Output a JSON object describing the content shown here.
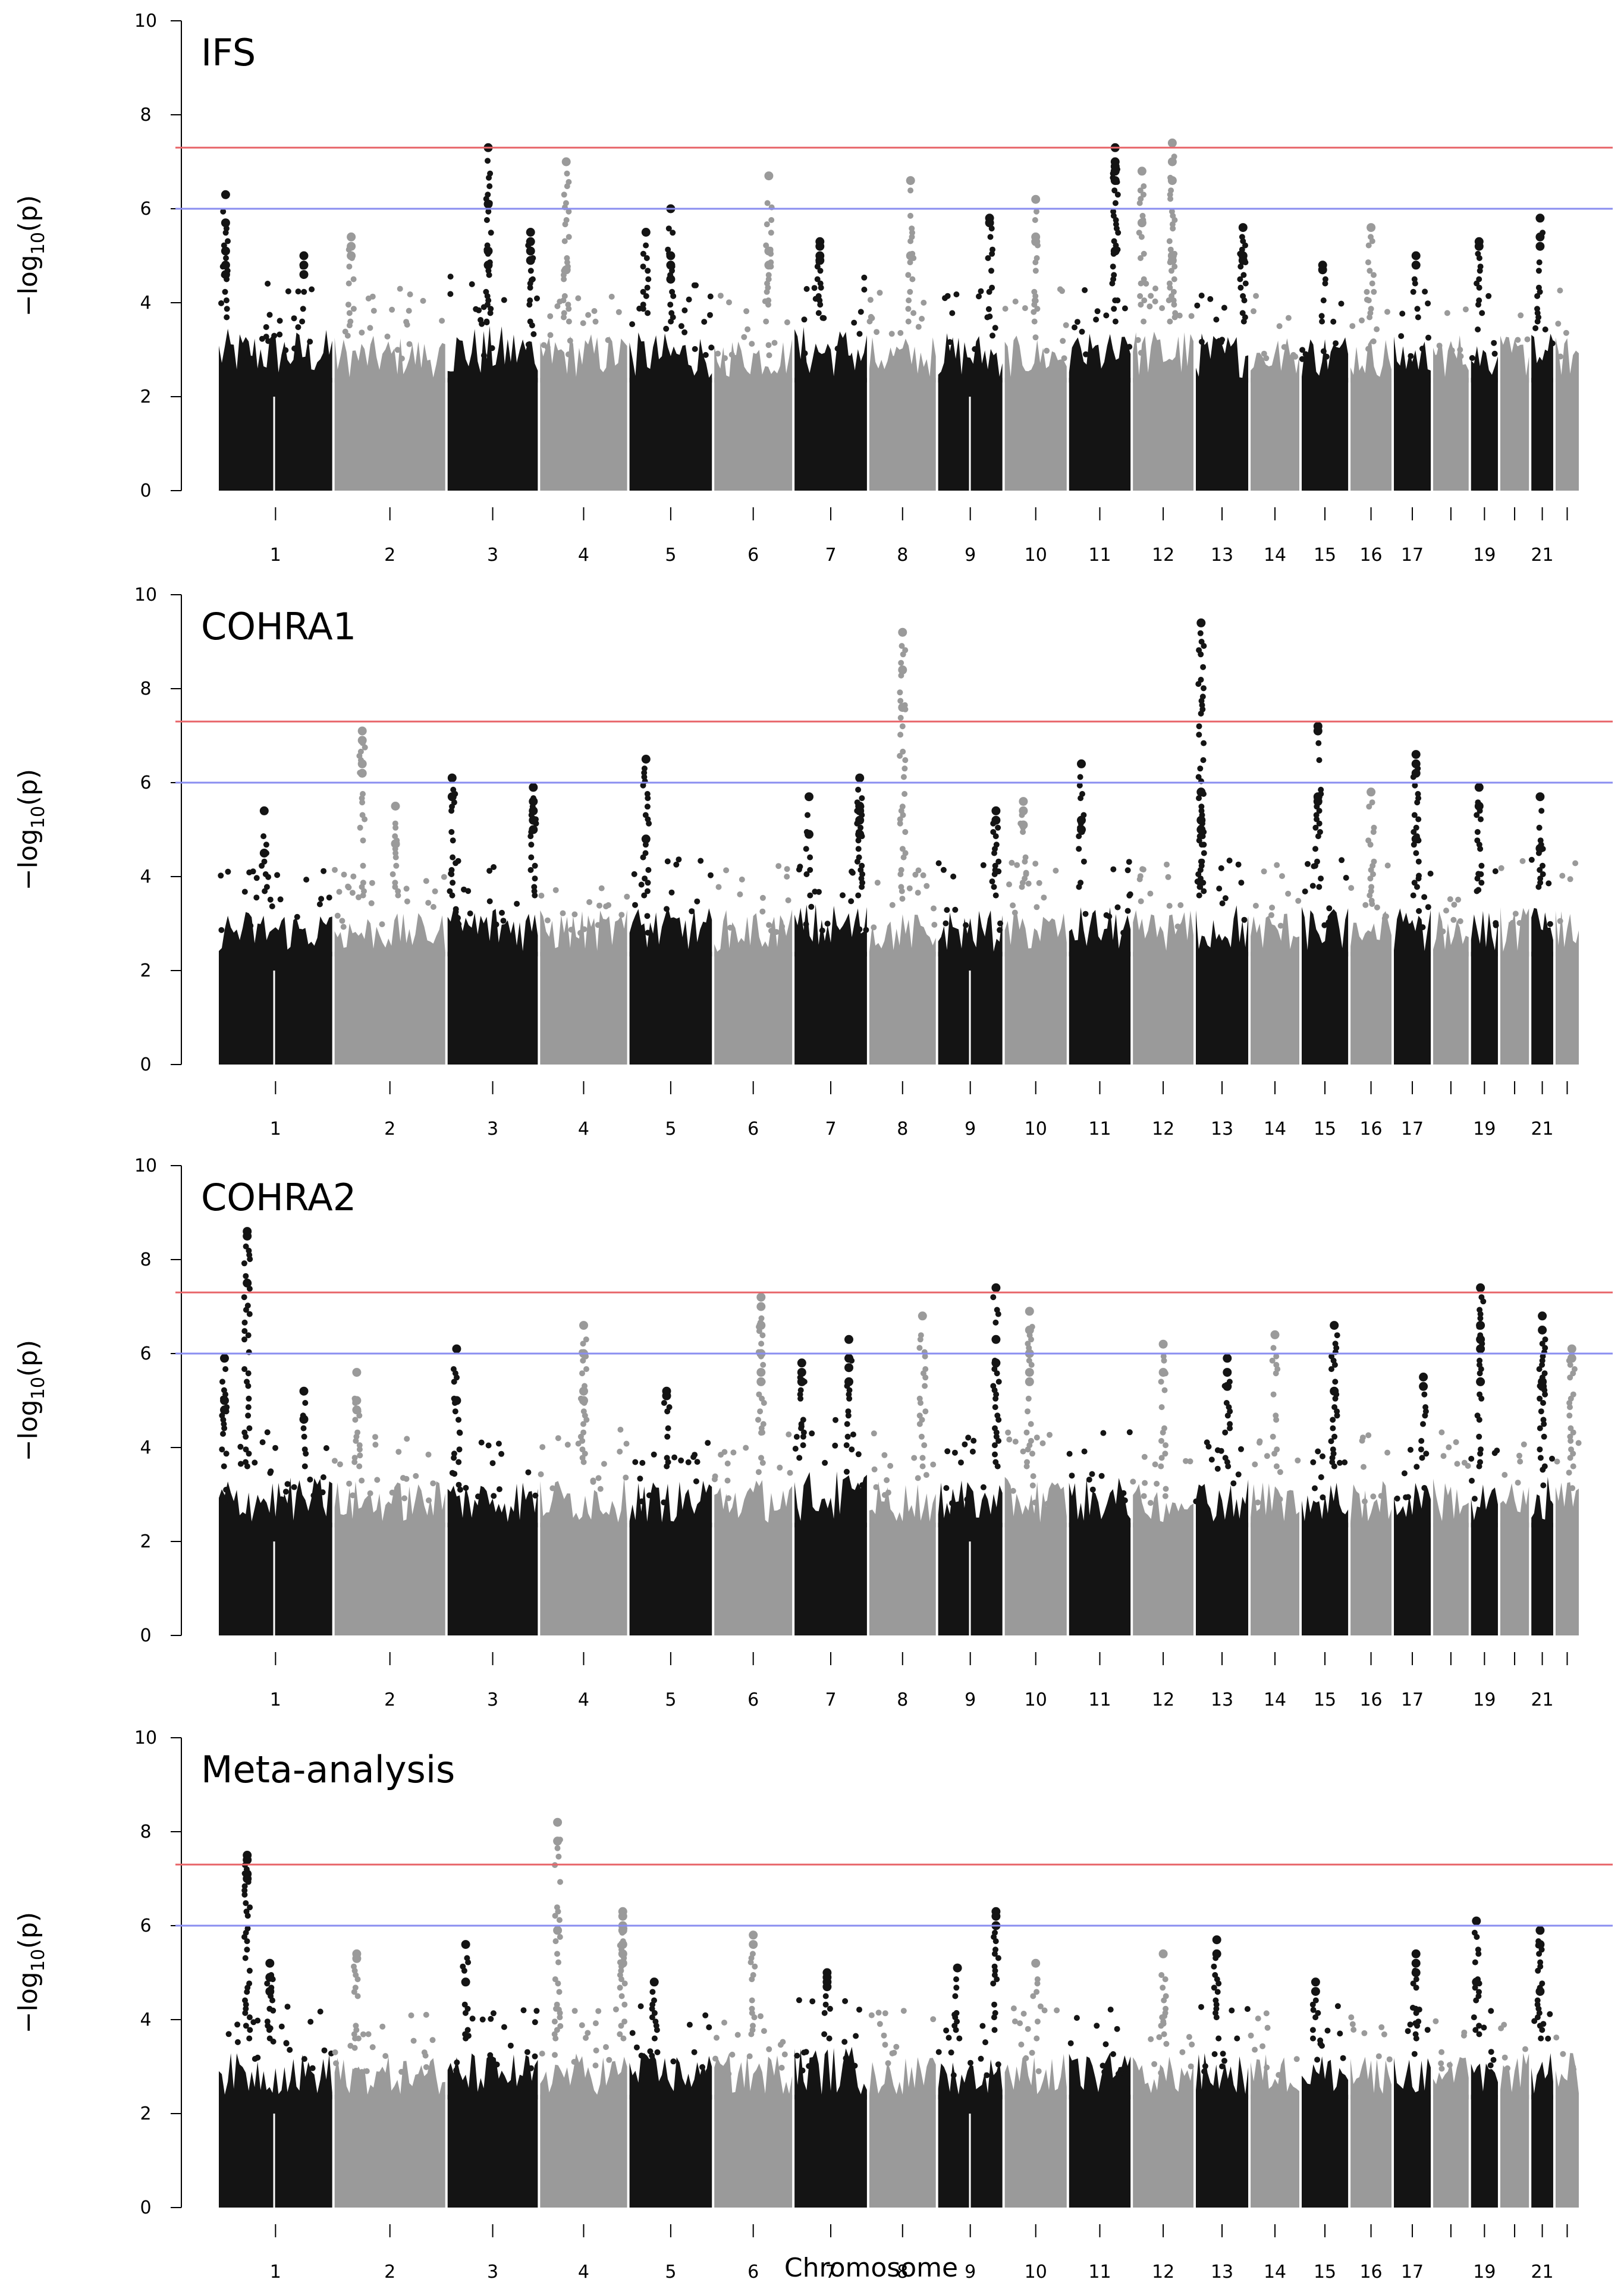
{
  "figure": {
    "xlabel": "Chromosome",
    "ylabel_main": "−log",
    "ylabel_sub": "10",
    "ylabel_tail": "(p)"
  },
  "chart_data": [
    {
      "type": "scatter",
      "subtype": "manhattan",
      "title": "IFS",
      "ylim": [
        0,
        10
      ],
      "yticks": [
        0,
        2,
        4,
        6,
        8,
        10
      ],
      "threshold_lines": [
        {
          "value": 7.3,
          "color": "#e8666a"
        },
        {
          "value": 6.0,
          "color": "#8a8ef0"
        }
      ],
      "colors": [
        "#141414",
        "#9a9a9a"
      ],
      "x_tick_labels": [
        "1",
        "2",
        "3",
        "4",
        "5",
        "6",
        "7",
        "8",
        "9",
        "10",
        "11",
        "12",
        "13",
        "14",
        "15",
        "16",
        "17",
        "19",
        "21"
      ],
      "background_max": [
        3.8,
        3.6,
        3.9,
        3.7,
        3.7,
        3.6,
        3.9,
        3.6,
        3.7,
        3.6,
        3.7,
        3.8,
        3.7,
        3.6,
        3.7,
        3.6,
        3.6,
        3.7,
        3.6,
        3.6,
        3.7,
        3.6
      ],
      "peaks": [
        {
          "chr": 1,
          "pos": 0.06,
          "values": [
            6.3,
            5.7,
            5.1,
            4.8,
            4.6
          ]
        },
        {
          "chr": 1,
          "pos": 0.75,
          "values": [
            5.0,
            4.8,
            4.6
          ]
        },
        {
          "chr": 2,
          "pos": 0.15,
          "values": [
            5.4,
            5.2,
            5.0
          ]
        },
        {
          "chr": 3,
          "pos": 0.45,
          "values": [
            7.3,
            6.1,
            5.1,
            4.8
          ]
        },
        {
          "chr": 3,
          "pos": 0.92,
          "values": [
            5.5,
            5.3,
            5.1,
            4.9
          ]
        },
        {
          "chr": 4,
          "pos": 0.3,
          "values": [
            7.0,
            4.7
          ]
        },
        {
          "chr": 5,
          "pos": 0.5,
          "values": [
            6.0,
            5.0,
            4.8,
            4.5
          ]
        },
        {
          "chr": 5,
          "pos": 0.2,
          "values": [
            5.5
          ]
        },
        {
          "chr": 6,
          "pos": 0.7,
          "values": [
            6.7,
            5.1,
            4.8
          ]
        },
        {
          "chr": 7,
          "pos": 0.35,
          "values": [
            5.3,
            5.2,
            5.0,
            4.9
          ]
        },
        {
          "chr": 8,
          "pos": 0.62,
          "values": [
            6.6,
            5.0
          ]
        },
        {
          "chr": 9,
          "pos": 0.8,
          "values": [
            5.8,
            5.7
          ]
        },
        {
          "chr": 10,
          "pos": 0.5,
          "values": [
            6.2,
            5.4,
            5.3
          ]
        },
        {
          "chr": 11,
          "pos": 0.75,
          "values": [
            7.3,
            7.0,
            6.9,
            6.8,
            6.6,
            5.1
          ]
        },
        {
          "chr": 12,
          "pos": 0.65,
          "values": [
            7.4,
            7.0,
            6.6,
            5.0,
            4.9
          ]
        },
        {
          "chr": 12,
          "pos": 0.15,
          "values": [
            6.8,
            5.7
          ]
        },
        {
          "chr": 13,
          "pos": 0.9,
          "values": [
            5.6,
            5.0,
            4.9
          ]
        },
        {
          "chr": 15,
          "pos": 0.45,
          "values": [
            4.8,
            4.7
          ]
        },
        {
          "chr": 16,
          "pos": 0.5,
          "values": [
            5.6
          ]
        },
        {
          "chr": 17,
          "pos": 0.6,
          "values": [
            5.0,
            4.8
          ]
        },
        {
          "chr": 19,
          "pos": 0.3,
          "values": [
            5.3,
            5.2
          ]
        },
        {
          "chr": 21,
          "pos": 0.4,
          "values": [
            5.8,
            5.4,
            5.2
          ]
        }
      ]
    },
    {
      "type": "scatter",
      "subtype": "manhattan",
      "title": "COHRA1",
      "ylim": [
        0,
        10
      ],
      "yticks": [
        0,
        2,
        4,
        6,
        8,
        10
      ],
      "threshold_lines": [
        {
          "value": 7.3,
          "color": "#e8666a"
        },
        {
          "value": 6.0,
          "color": "#8a8ef0"
        }
      ],
      "colors": [
        "#141414",
        "#9a9a9a"
      ],
      "x_tick_labels": [
        "1",
        "2",
        "3",
        "4",
        "5",
        "6",
        "7",
        "8",
        "9",
        "10",
        "11",
        "12",
        "13",
        "14",
        "15",
        "16",
        "17",
        "19",
        "21"
      ],
      "background_max": [
        3.6,
        3.5,
        3.8,
        3.6,
        3.7,
        3.6,
        3.8,
        3.5,
        3.6,
        3.6,
        3.7,
        3.6,
        3.8,
        3.6,
        3.7,
        3.6,
        3.7,
        3.6,
        3.6,
        3.7,
        3.7,
        3.6
      ],
      "peaks": [
        {
          "chr": 1,
          "pos": 0.4,
          "values": [
            5.4,
            4.5
          ]
        },
        {
          "chr": 2,
          "pos": 0.25,
          "values": [
            7.1,
            6.9,
            6.4,
            6.2
          ]
        },
        {
          "chr": 2,
          "pos": 0.55,
          "values": [
            5.5,
            4.7
          ]
        },
        {
          "chr": 3,
          "pos": 0.05,
          "values": [
            6.1,
            5.7
          ]
        },
        {
          "chr": 3,
          "pos": 0.95,
          "values": [
            5.9,
            5.6,
            5.4,
            5.2,
            5.0
          ]
        },
        {
          "chr": 5,
          "pos": 0.2,
          "values": [
            6.5,
            4.8
          ]
        },
        {
          "chr": 7,
          "pos": 0.2,
          "values": [
            5.7,
            4.9
          ]
        },
        {
          "chr": 7,
          "pos": 0.9,
          "values": [
            6.1,
            5.5,
            5.4,
            5.2,
            4.9
          ]
        },
        {
          "chr": 8,
          "pos": 0.5,
          "values": [
            9.2,
            8.4,
            7.6
          ]
        },
        {
          "chr": 9,
          "pos": 0.9,
          "values": [
            5.4,
            5.2
          ]
        },
        {
          "chr": 10,
          "pos": 0.3,
          "values": [
            5.6,
            5.4,
            5.1
          ]
        },
        {
          "chr": 11,
          "pos": 0.2,
          "values": [
            6.4,
            5.2,
            5.0
          ]
        },
        {
          "chr": 13,
          "pos": 0.1,
          "values": [
            9.4
          ]
        },
        {
          "chr": 13,
          "pos": 0.1,
          "values": [
            5.8,
            5.2,
            5.0
          ]
        },
        {
          "chr": 15,
          "pos": 0.35,
          "values": [
            7.2,
            7.1,
            5.7,
            5.6
          ]
        },
        {
          "chr": 16,
          "pos": 0.5,
          "values": [
            5.8
          ]
        },
        {
          "chr": 17,
          "pos": 0.6,
          "values": [
            6.6,
            6.4,
            6.2,
            4.8
          ]
        },
        {
          "chr": 19,
          "pos": 0.3,
          "values": [
            5.9,
            5.5
          ]
        },
        {
          "chr": 21,
          "pos": 0.4,
          "values": [
            5.7,
            4.6
          ]
        }
      ]
    },
    {
      "type": "scatter",
      "subtype": "manhattan",
      "title": "COHRA2",
      "ylim": [
        0,
        10
      ],
      "yticks": [
        0,
        2,
        4,
        6,
        8,
        10
      ],
      "threshold_lines": [
        {
          "value": 7.3,
          "color": "#e8666a"
        },
        {
          "value": 6.0,
          "color": "#8a8ef0"
        }
      ],
      "colors": [
        "#141414",
        "#9a9a9a"
      ],
      "x_tick_labels": [
        "1",
        "2",
        "3",
        "4",
        "5",
        "6",
        "7",
        "8",
        "9",
        "10",
        "11",
        "12",
        "13",
        "14",
        "15",
        "16",
        "17",
        "19",
        "21"
      ],
      "background_max": [
        3.7,
        3.6,
        3.7,
        3.7,
        3.6,
        3.7,
        3.9,
        3.6,
        3.6,
        3.7,
        3.7,
        3.5,
        3.7,
        3.6,
        3.7,
        3.6,
        3.6,
        3.7,
        3.6,
        3.6,
        3.7,
        3.6
      ],
      "peaks": [
        {
          "chr": 1,
          "pos": 0.25,
          "values": [
            8.6,
            8.5,
            7.5
          ]
        },
        {
          "chr": 1,
          "pos": 0.05,
          "values": [
            5.9,
            5.0,
            4.8
          ]
        },
        {
          "chr": 1,
          "pos": 0.75,
          "values": [
            5.2,
            4.6
          ]
        },
        {
          "chr": 2,
          "pos": 0.2,
          "values": [
            5.6,
            5.0,
            4.8
          ]
        },
        {
          "chr": 3,
          "pos": 0.1,
          "values": [
            6.1,
            5.0
          ]
        },
        {
          "chr": 4,
          "pos": 0.5,
          "values": [
            6.6,
            6.0,
            5.2,
            5.0
          ]
        },
        {
          "chr": 5,
          "pos": 0.45,
          "values": [
            5.2,
            5.1
          ]
        },
        {
          "chr": 6,
          "pos": 0.6,
          "values": [
            7.2,
            7.0,
            6.6,
            6.0,
            5.6,
            5.4
          ]
        },
        {
          "chr": 7,
          "pos": 0.1,
          "values": [
            5.8,
            5.6,
            5.4
          ]
        },
        {
          "chr": 7,
          "pos": 0.75,
          "values": [
            6.3,
            5.9,
            5.7,
            5.4
          ]
        },
        {
          "chr": 8,
          "pos": 0.8,
          "values": [
            6.8
          ]
        },
        {
          "chr": 9,
          "pos": 0.9,
          "values": [
            7.4,
            6.3,
            5.8
          ]
        },
        {
          "chr": 10,
          "pos": 0.4,
          "values": [
            6.9,
            6.5,
            6.0,
            5.6,
            5.4
          ]
        },
        {
          "chr": 12,
          "pos": 0.5,
          "values": [
            6.2,
            5.6
          ]
        },
        {
          "chr": 13,
          "pos": 0.6,
          "values": [
            5.9,
            5.6,
            5.3
          ]
        },
        {
          "chr": 14,
          "pos": 0.5,
          "values": [
            6.4
          ]
        },
        {
          "chr": 15,
          "pos": 0.7,
          "values": [
            6.6,
            5.2
          ]
        },
        {
          "chr": 17,
          "pos": 0.8,
          "values": [
            5.5,
            5.3
          ]
        },
        {
          "chr": 19,
          "pos": 0.35,
          "values": [
            7.4,
            6.6,
            6.3,
            6.1,
            5.4
          ]
        },
        {
          "chr": 21,
          "pos": 0.5,
          "values": [
            6.8,
            6.5,
            5.4,
            5.3
          ]
        },
        {
          "chr": 22,
          "pos": 0.7,
          "values": [
            6.1,
            5.9
          ]
        }
      ]
    },
    {
      "type": "scatter",
      "subtype": "manhattan",
      "title": "Meta-analysis",
      "ylim": [
        0,
        10
      ],
      "yticks": [
        0,
        2,
        4,
        6,
        8,
        10
      ],
      "threshold_lines": [
        {
          "value": 7.3,
          "color": "#e8666a"
        },
        {
          "value": 6.0,
          "color": "#8a8ef0"
        }
      ],
      "colors": [
        "#141414",
        "#9a9a9a"
      ],
      "x_tick_labels": [
        "1",
        "2",
        "3",
        "4",
        "5",
        "6",
        "7",
        "8",
        "9",
        "10",
        "11",
        "12",
        "13",
        "14",
        "15",
        "16",
        "17",
        "19",
        "21"
      ],
      "background_max": [
        3.6,
        3.5,
        3.6,
        3.6,
        3.6,
        3.6,
        3.8,
        3.5,
        3.5,
        3.6,
        3.6,
        3.5,
        3.6,
        3.6,
        3.6,
        3.5,
        3.6,
        3.6,
        3.5,
        3.6,
        3.7,
        3.6
      ],
      "peaks": [
        {
          "chr": 1,
          "pos": 0.25,
          "values": [
            7.5,
            7.4,
            7.1,
            7.0
          ]
        },
        {
          "chr": 1,
          "pos": 0.45,
          "values": [
            5.2,
            4.9,
            4.6
          ]
        },
        {
          "chr": 2,
          "pos": 0.2,
          "values": [
            5.4,
            5.3
          ]
        },
        {
          "chr": 3,
          "pos": 0.2,
          "values": [
            5.6,
            4.8
          ]
        },
        {
          "chr": 4,
          "pos": 0.2,
          "values": [
            8.2,
            7.8,
            5.9
          ]
        },
        {
          "chr": 4,
          "pos": 0.95,
          "values": [
            6.3,
            6.2,
            6.0,
            5.9,
            5.6,
            5.4,
            5.2
          ]
        },
        {
          "chr": 5,
          "pos": 0.3,
          "values": [
            4.8
          ]
        },
        {
          "chr": 6,
          "pos": 0.5,
          "values": [
            5.8,
            5.6
          ]
        },
        {
          "chr": 7,
          "pos": 0.45,
          "values": [
            5.0,
            4.9,
            4.8,
            4.7
          ]
        },
        {
          "chr": 9,
          "pos": 0.3,
          "values": [
            5.1
          ]
        },
        {
          "chr": 9,
          "pos": 0.9,
          "values": [
            6.3,
            6.2,
            6.0
          ]
        },
        {
          "chr": 10,
          "pos": 0.5,
          "values": [
            5.2
          ]
        },
        {
          "chr": 12,
          "pos": 0.5,
          "values": [
            5.4
          ]
        },
        {
          "chr": 13,
          "pos": 0.4,
          "values": [
            5.7,
            5.4
          ]
        },
        {
          "chr": 15,
          "pos": 0.3,
          "values": [
            4.8,
            4.6
          ]
        },
        {
          "chr": 17,
          "pos": 0.6,
          "values": [
            5.4,
            5.2,
            5.0
          ]
        },
        {
          "chr": 19,
          "pos": 0.2,
          "values": [
            6.1,
            4.8
          ]
        },
        {
          "chr": 21,
          "pos": 0.4,
          "values": [
            5.9,
            5.6,
            4.6
          ]
        }
      ]
    }
  ]
}
